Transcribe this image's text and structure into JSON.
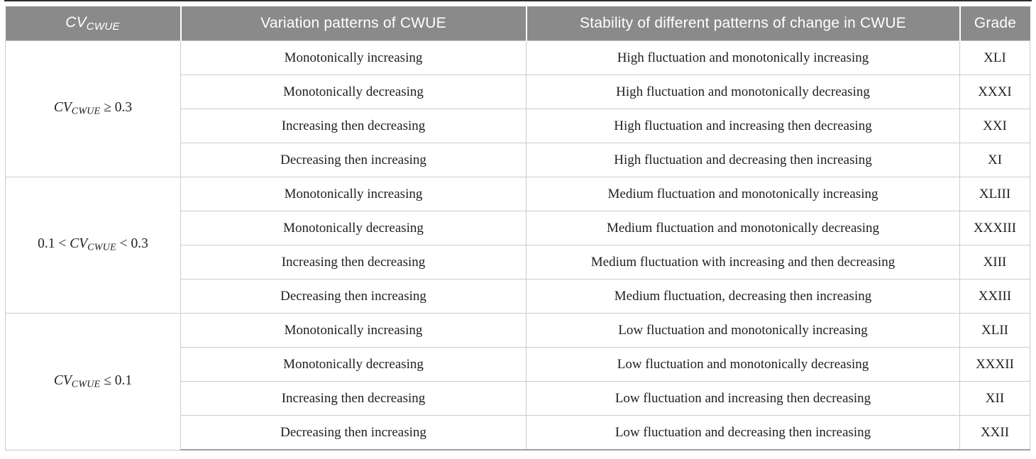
{
  "colors": {
    "header_bg": "#8a8a8a",
    "header_text": "#ffffff",
    "body_text": "#212121",
    "grid_border": "#cccccc",
    "top_rule": "#2b2b2b",
    "bottom_rule": "#a0a0a0"
  },
  "table": {
    "headers": {
      "col1": {
        "var": "CV",
        "sub": "CWUE"
      },
      "col2": "Variation patterns of CWUE",
      "col3": "Stability of different patterns of change in CWUE",
      "col4": "Grade"
    },
    "groups": [
      {
        "condition": {
          "prefix": "",
          "var": "CV",
          "sub": "CWUE",
          "suffix": " ≥ 0.3"
        },
        "rows": [
          {
            "pattern": "Monotonically increasing",
            "stability": "High fluctuation and monotonically increasing",
            "grade": "XLI"
          },
          {
            "pattern": "Monotonically decreasing",
            "stability": "High fluctuation and monotonically decreasing",
            "grade": "XXXI"
          },
          {
            "pattern": "Increasing then decreasing",
            "stability": "High fluctuation and increasing then decreasing",
            "grade": "XXI"
          },
          {
            "pattern": "Decreasing then increasing",
            "stability": "High fluctuation and decreasing then increasing",
            "grade": "XI"
          }
        ]
      },
      {
        "condition": {
          "prefix": "0.1 < ",
          "var": "CV",
          "sub": "CWUE",
          "suffix": " < 0.3"
        },
        "rows": [
          {
            "pattern": "Monotonically increasing",
            "stability": "Medium fluctuation and monotonically increasing",
            "grade": "XLIII"
          },
          {
            "pattern": "Monotonically decreasing",
            "stability": "Medium fluctuation and monotonically decreasing",
            "grade": "XXXIII"
          },
          {
            "pattern": "Increasing then decreasing",
            "stability": "Medium fluctuation with increasing and then decreasing",
            "grade": "XIII"
          },
          {
            "pattern": "Decreasing then increasing",
            "stability": "Medium fluctuation, decreasing then increasing",
            "grade": "XXIII"
          }
        ]
      },
      {
        "condition": {
          "prefix": "",
          "var": "CV",
          "sub": "CWUE",
          "suffix": " ≤ 0.1"
        },
        "rows": [
          {
            "pattern": "Monotonically increasing",
            "stability": "Low fluctuation and monotonically increasing",
            "grade": "XLII"
          },
          {
            "pattern": "Monotonically decreasing",
            "stability": "Low fluctuation and monotonically decreasing",
            "grade": "XXXII"
          },
          {
            "pattern": "Increasing then decreasing",
            "stability": "Low fluctuation and increasing then decreasing",
            "grade": "XII"
          },
          {
            "pattern": "Decreasing then increasing",
            "stability": "Low fluctuation and decreasing then increasing",
            "grade": "XXII"
          }
        ]
      }
    ]
  }
}
